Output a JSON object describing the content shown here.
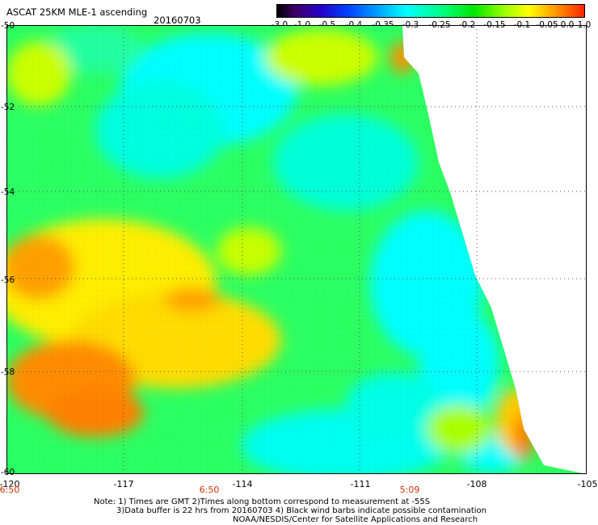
{
  "header": {
    "title": "ASCAT 25KM MLE-1 ascending",
    "date": "20160703"
  },
  "colorbar": {
    "labels": [
      "-3.0",
      "-1.0",
      "-0.5",
      "-0.4",
      "-0.35",
      "-0.3",
      "-0.25",
      "-0.2",
      "-0.15",
      "-0.1",
      "-0.05",
      "0.0",
      "1.0"
    ]
  },
  "axes": {
    "lat_labels": [
      "-50",
      "-52",
      "-54",
      "-56",
      "-58",
      "-60"
    ],
    "lon_labels": [
      "-120",
      "-117",
      "-114",
      "-111",
      "-108",
      "-105"
    ]
  },
  "time_labels": [
    "6:50",
    "6:50",
    "5:09"
  ],
  "notes": {
    "line1": "Note: 1) Times are GMT 2)Times along bottom correspond to measurement at -55S",
    "line2": "3)Data buffer is 22 hrs from 20160703 4) Black wind barbs indicate possible contamination",
    "line3": "NOAA/NESDIS/Center for Satellite Applications and Research"
  },
  "map_colors": {
    "cyan": "#00ffff",
    "green": "#00ff00",
    "yellow": "#ffff00",
    "orange": "#ff8c00"
  }
}
